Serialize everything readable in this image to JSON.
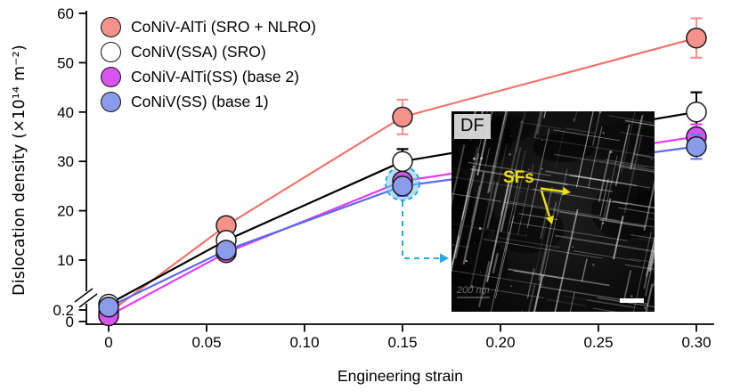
{
  "figure": {
    "xlabel": "Engineering strain",
    "ylabel": "Dislocation density (×10¹⁴ m⁻²)"
  },
  "chart_data": {
    "type": "line",
    "title": "",
    "xlabel": "Engineering strain",
    "ylabel": "Dislocation density (x10^14 m^-2)",
    "x": [
      0,
      0.06,
      0.15,
      0.3
    ],
    "series": [
      {
        "name": "CoNiV-AlTi (SRO + NLRO)",
        "values": [
          0.15,
          17,
          39,
          55
        ],
        "errors": [
          0.1,
          1.5,
          3.5,
          4
        ],
        "marker_fill": "#f4918a",
        "line_color": "#f3736e",
        "error_color": "#f5908a"
      },
      {
        "name": "CoNiV(SSA) (SRO)",
        "values": [
          0.3,
          14,
          30,
          40
        ],
        "errors": [
          0.1,
          1.5,
          2.5,
          4
        ],
        "marker_fill": "#ffffff",
        "line_color": "#000000",
        "error_color": "#000000"
      },
      {
        "name": "CoNiV-AlTi(SS) (base 2)",
        "values": [
          0.1,
          11.5,
          26,
          35
        ],
        "errors": [
          0.05,
          1,
          1.5,
          2.5
        ],
        "marker_fill": "#d953f0",
        "line_color": "#e23df2",
        "error_color": "#e23df2"
      },
      {
        "name": "CoNiV(SS) (base 1)",
        "values": [
          0.25,
          12,
          25,
          33
        ],
        "errors": [
          0.05,
          1,
          2,
          2.5
        ],
        "marker_fill": "#8b9bec",
        "line_color": "#5a68ea",
        "error_color": "#6b7bec"
      }
    ],
    "x_ticks": {
      "values": [
        0,
        0.05,
        0.1,
        0.15,
        0.2,
        0.25,
        0.3
      ],
      "labels": [
        "0",
        "0.05",
        "0.10",
        "0.15",
        "0.20",
        "0.25",
        "0.30"
      ]
    },
    "y_ticks_upper": {
      "values": [
        10,
        20,
        30,
        40,
        50,
        60
      ],
      "labels": [
        "10",
        "20",
        "30",
        "40",
        "50",
        "60"
      ]
    },
    "y_ticks_lower": {
      "values": [
        0,
        0.2
      ],
      "labels": [
        "0",
        "0.2"
      ]
    },
    "axis_break": true,
    "xlim": [
      0,
      0.315
    ],
    "ylim_upper": [
      10,
      60
    ],
    "ylim_lower": [
      0,
      0.2
    ],
    "grid": false,
    "legend_position": "upper-left",
    "highlight": {
      "x": 0.15,
      "series": "CoNiV(SS) (base 1)",
      "fill": "#7cc4ec",
      "fill_opacity": 0.55,
      "border": "#2aa9e0"
    }
  },
  "inset": {
    "df_label": "DF",
    "sfs_label": "SFs",
    "scalebar_text": "200 nm",
    "colors": {
      "annotation": "#efe20a",
      "background": "#0b0b0b",
      "scalebar": "#ffffff"
    }
  }
}
